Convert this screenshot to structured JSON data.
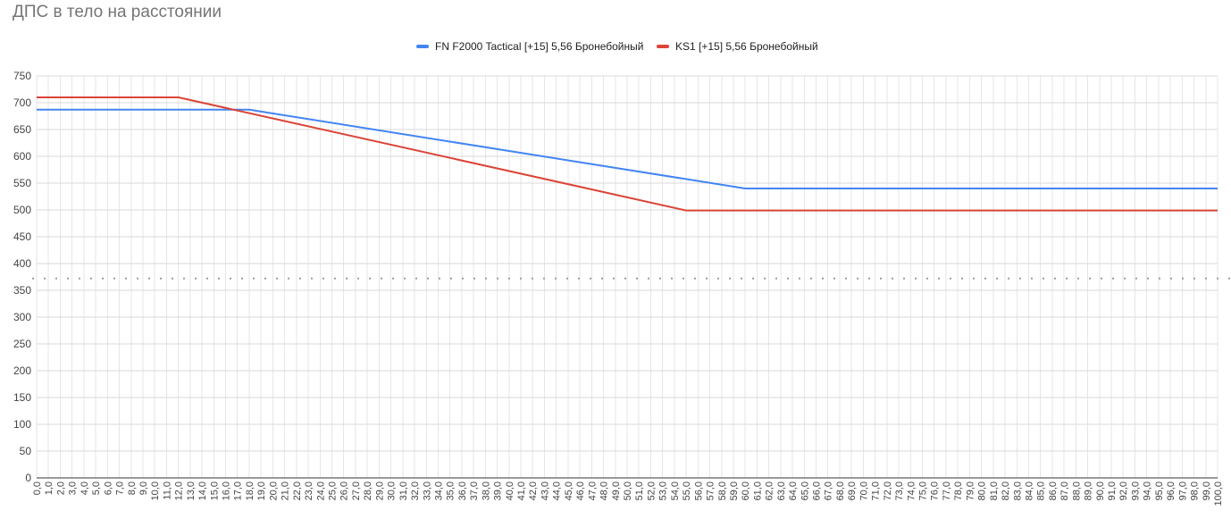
{
  "chart_data": {
    "type": "line",
    "title": "ДПС в тело на расстоянии",
    "xlabel": "",
    "ylabel": "",
    "ylim": [
      0,
      750
    ],
    "y_ticks": [
      0,
      50,
      100,
      150,
      200,
      250,
      300,
      350,
      400,
      450,
      500,
      550,
      600,
      650,
      700,
      750
    ],
    "xlim": [
      0,
      100
    ],
    "x_tick_step": 1,
    "x_tick_format": "comma-decimal-1",
    "grid": true,
    "legend_position": "top",
    "series": [
      {
        "name": "FN F2000 Tactical [+15] 5,56 Бронебойный",
        "color": "#4285f4",
        "x": [
          0,
          18,
          60,
          100
        ],
        "y": [
          687,
          687,
          540,
          540
        ]
      },
      {
        "name": "KS1 [+15] 5,56 Бронебойный",
        "color": "#db4437",
        "x": [
          0,
          12,
          55,
          100
        ],
        "y": [
          710,
          710,
          499,
          499
        ]
      }
    ],
    "reference_line": {
      "y": 372,
      "style": "dotted",
      "color": "#9e9e9e"
    }
  }
}
